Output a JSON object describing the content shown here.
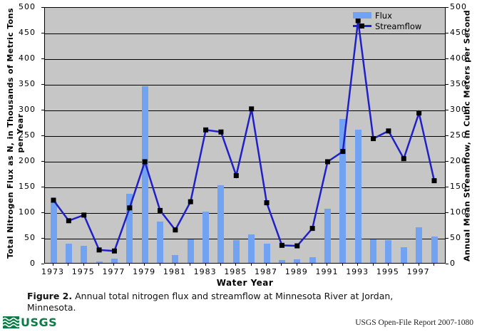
{
  "chart_data": {
    "type": "bar+line",
    "x": [
      1973,
      1974,
      1975,
      1976,
      1977,
      1978,
      1979,
      1980,
      1981,
      1982,
      1983,
      1984,
      1985,
      1986,
      1987,
      1988,
      1989,
      1990,
      1991,
      1992,
      1993,
      1994,
      1995,
      1996,
      1997,
      1998
    ],
    "series": [
      {
        "name": "Flux",
        "type": "bar",
        "values": [
          120,
          37,
          33,
          3,
          8,
          135,
          345,
          81,
          15,
          46,
          100,
          152,
          44,
          55,
          37,
          6,
          7,
          11,
          105,
          280,
          260,
          46,
          44,
          31,
          70,
          52
        ]
      },
      {
        "name": "Streamflow",
        "type": "line",
        "marker": "black-square",
        "values": [
          125,
          85,
          96,
          28,
          26,
          110,
          200,
          105,
          67,
          122,
          262,
          258,
          173,
          303,
          120,
          37,
          36,
          70,
          200,
          220,
          475,
          245,
          260,
          206,
          295,
          163
        ]
      }
    ],
    "yticks": [
      0,
      50,
      100,
      150,
      200,
      250,
      300,
      350,
      400,
      450,
      500
    ],
    "ylim": [
      0,
      500
    ],
    "xlabel": "Water Year",
    "ylabel_left_line1": "Total Nitrogen Flux as N, in Thousands of Metric Tons",
    "ylabel_left_line2": "per Year",
    "ylabel_right": "Annual Mean Streamflow, in Cubic Meters per Second",
    "xtick_labels_shown": [
      "1973",
      "1975",
      "1977",
      "1979",
      "1981",
      "1983",
      "1985",
      "1987",
      "1989",
      "1991",
      "1993",
      "1995",
      "1997"
    ],
    "grid": true,
    "legend_position": "top-right-inside"
  },
  "legend": {
    "flux_label": "Flux",
    "streamflow_label": "Streamflow"
  },
  "caption": {
    "label": "Figure 2.",
    "line1": " Annual total nitrogen flux and streamflow at Minnesota River at Jordan,",
    "line2": "Minnesota."
  },
  "footer": {
    "logo_text": "USGS",
    "report": "USGS Open-File Report 2007-1080"
  },
  "colors": {
    "bar": "#72a2f2",
    "line": "#2020c8",
    "marker": "#000000",
    "plot_bg": "#c6c6c6",
    "gridline": "#000000",
    "usgs_green": "#0b7a44"
  }
}
